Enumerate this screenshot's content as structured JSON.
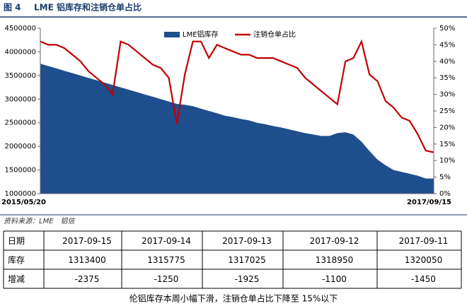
{
  "chart_data": {
    "type": "area-line",
    "title": "图 4",
    "subtitle": "LME 铝库存和注销仓单占比",
    "categories": [
      "2015/05/20",
      null,
      null,
      null,
      null,
      null,
      null,
      null,
      null,
      null,
      null,
      null,
      null,
      null,
      null,
      null,
      null,
      null,
      null,
      null,
      null,
      null,
      null,
      null,
      null,
      null,
      null,
      null,
      null,
      null,
      null,
      null,
      null,
      null,
      null,
      null,
      null,
      null,
      null,
      null,
      null,
      null,
      null,
      null,
      null,
      null,
      null,
      null,
      null,
      "2017/09/15"
    ],
    "series": [
      {
        "name": "LME铝库存",
        "color": "#1f4e8c",
        "values": [
          3750000,
          3700000,
          3650000,
          3600000,
          3550000,
          3500000,
          3450000,
          3400000,
          3350000,
          3300000,
          3250000,
          3200000,
          3150000,
          3100000,
          3050000,
          3000000,
          2950000,
          2900000,
          2880000,
          2850000,
          2800000,
          2750000,
          2700000,
          2650000,
          2620000,
          2580000,
          2550000,
          2500000,
          2470000,
          2430000,
          2400000,
          2360000,
          2320000,
          2280000,
          2250000,
          2220000,
          2220000,
          2280000,
          2300000,
          2250000,
          2100000,
          1900000,
          1720000,
          1600000,
          1500000,
          1460000,
          1420000,
          1380000,
          1320000,
          1320000
        ]
      },
      {
        "name": "注销仓单占比",
        "color": "#c00000",
        "axis": "y2",
        "values": [
          46,
          45,
          45,
          44,
          42,
          40,
          37,
          35,
          33,
          30,
          46,
          45,
          43,
          41,
          39,
          38,
          35,
          21,
          36,
          46,
          46,
          41,
          45,
          44,
          43,
          42,
          42,
          41,
          41,
          41,
          40,
          39,
          38,
          35,
          33,
          31,
          29,
          27,
          40,
          41,
          46,
          36,
          34,
          28,
          26,
          23,
          22,
          18,
          13,
          12.5
        ]
      }
    ],
    "ylim": [
      1000000,
      4500000
    ],
    "yticks": [
      1000000,
      1500000,
      2000000,
      2500000,
      3000000,
      3500000,
      4000000,
      4500000
    ],
    "y2lim": [
      0,
      50
    ],
    "y2ticks": [
      {
        "value": 0,
        "label": "0%"
      },
      {
        "value": 5,
        "label": "5%"
      },
      {
        "value": 10,
        "label": "10%"
      },
      {
        "value": 15,
        "label": "15%"
      },
      {
        "value": 20,
        "label": "20%"
      },
      {
        "value": 25,
        "label": "25%"
      },
      {
        "value": 30,
        "label": "30%"
      },
      {
        "value": 35,
        "label": "35%"
      },
      {
        "value": 40,
        "label": "40%"
      },
      {
        "value": 45,
        "label": "45%"
      },
      {
        "value": 50,
        "label": "50%"
      }
    ],
    "grid": false,
    "source": "资料来源：LME　铝信"
  },
  "table": {
    "rows": [
      [
        "日期",
        "2017-09-15",
        "2017-09-14",
        "2017-09-13",
        "2017-09-12",
        "2017-09-11"
      ],
      [
        "库存",
        1313400,
        1315775,
        1317025,
        1318950,
        1320050
      ],
      [
        "增减",
        -2375,
        -1250,
        -1925,
        -1100,
        -1450
      ]
    ],
    "caption": "伦铝库存本周小幅下滑，注销仓单占比下降至 15%以下"
  }
}
